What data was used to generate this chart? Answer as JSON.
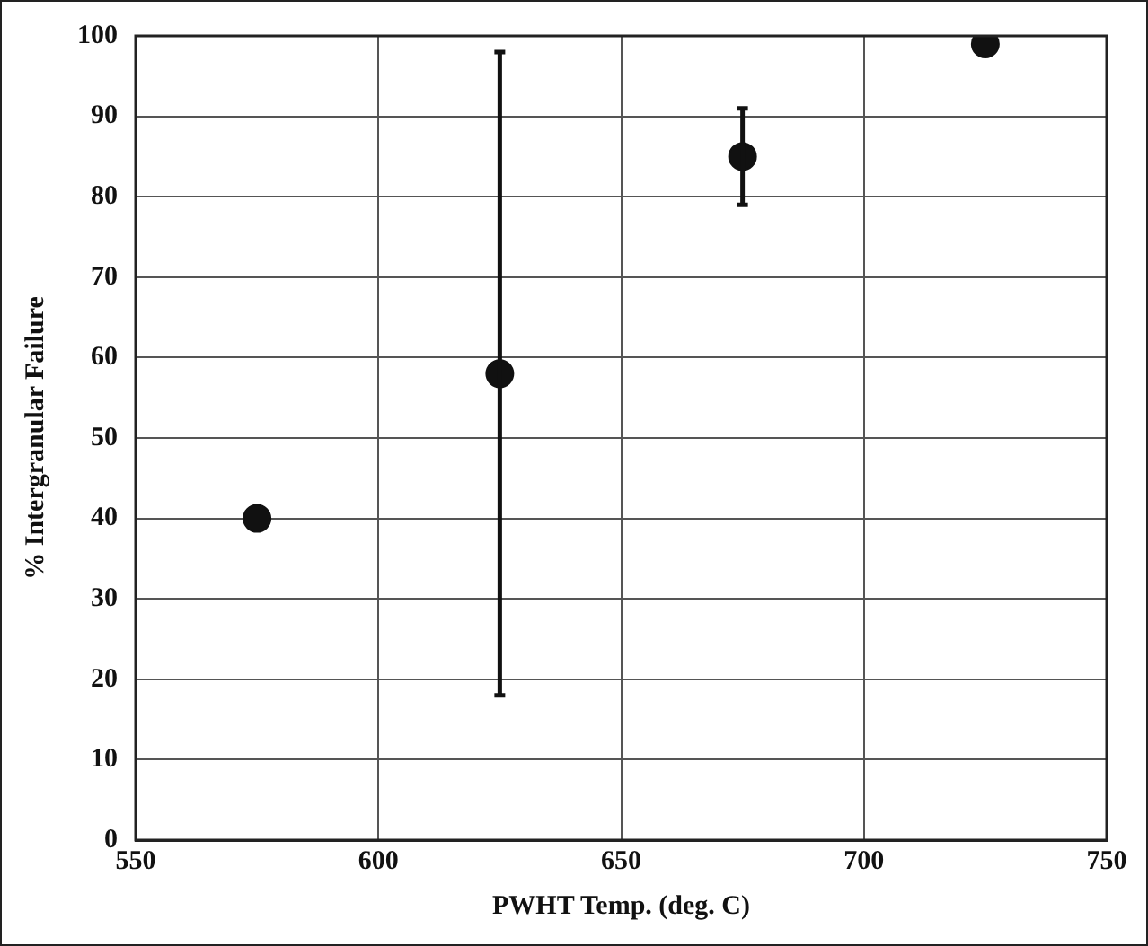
{
  "chart_data": {
    "type": "scatter",
    "xlabel": "PWHT Temp. (deg. C)",
    "ylabel": "% Intergranular Failure",
    "x": [
      575,
      625,
      675,
      725
    ],
    "values": [
      40,
      58,
      85,
      99
    ],
    "errors": [
      null,
      [
        18,
        98
      ],
      [
        79,
        91
      ],
      null
    ],
    "color": "#111111",
    "marker": "circle",
    "xlim": [
      550,
      750
    ],
    "xticks": [
      550,
      600,
      650,
      700,
      750
    ],
    "ylim": [
      0,
      100
    ],
    "yticks": [
      0,
      10,
      20,
      30,
      40,
      50,
      60,
      70,
      80,
      90,
      100
    ],
    "grid": true,
    "legend": false
  }
}
